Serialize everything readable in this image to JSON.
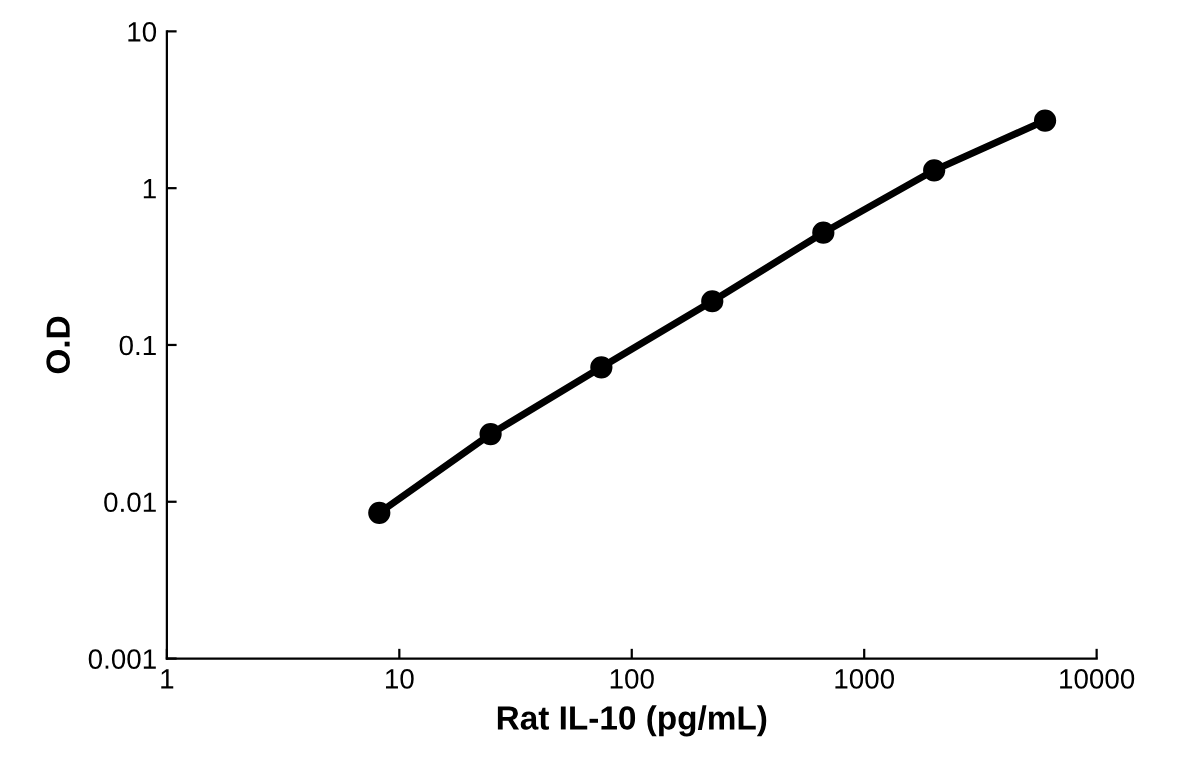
{
  "chart_data": {
    "type": "line",
    "xlabel": "Rat IL-10 (pg/mL)",
    "ylabel": "O.D",
    "log": "xy",
    "x": [
      8.2,
      24.7,
      74,
      222,
      667,
      2000,
      6000
    ],
    "series": [
      {
        "color": "#000000",
        "values": [
          0.0085,
          0.027,
          0.072,
          0.19,
          0.52,
          1.3,
          2.7
        ]
      }
    ],
    "xlim": [
      1,
      10000
    ],
    "xticks": [
      1,
      10,
      100,
      1000,
      10000
    ],
    "ylim": [
      0.001,
      10
    ],
    "yticks": [
      {
        "value": 0.001,
        "label": "0.001"
      },
      {
        "value": 0.01,
        "label": "0.01"
      },
      {
        "value": 0.1,
        "label": "0.1"
      },
      {
        "value": 1,
        "label": "1"
      },
      {
        "value": 10,
        "label": "10"
      }
    ],
    "grid": false,
    "marker": "circle",
    "line_style": "solid"
  }
}
